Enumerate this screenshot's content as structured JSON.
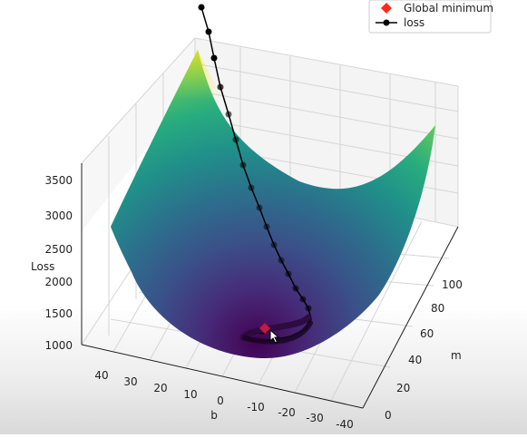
{
  "chart_data": {
    "type": "surface",
    "title": "",
    "xlabel": "b",
    "ylabel": "m",
    "zlabel": "Loss",
    "b_ticks": [
      40,
      30,
      20,
      10,
      0,
      -10,
      -20,
      -30,
      -40
    ],
    "m_ticks": [
      0,
      20,
      40,
      60,
      80,
      100
    ],
    "z_ticks": [
      1000,
      1500,
      2000,
      2500,
      3000,
      3500
    ],
    "colormap": "viridis",
    "grid": true,
    "legend": {
      "placement": "top-right",
      "entries": [
        {
          "label": "Global minimum",
          "marker": "diamond",
          "color": "#ff2a1a"
        },
        {
          "label": "loss",
          "marker": "circle-line",
          "color": "#000000"
        }
      ]
    },
    "global_minimum": {
      "b": 0,
      "m": 50
    }
  }
}
